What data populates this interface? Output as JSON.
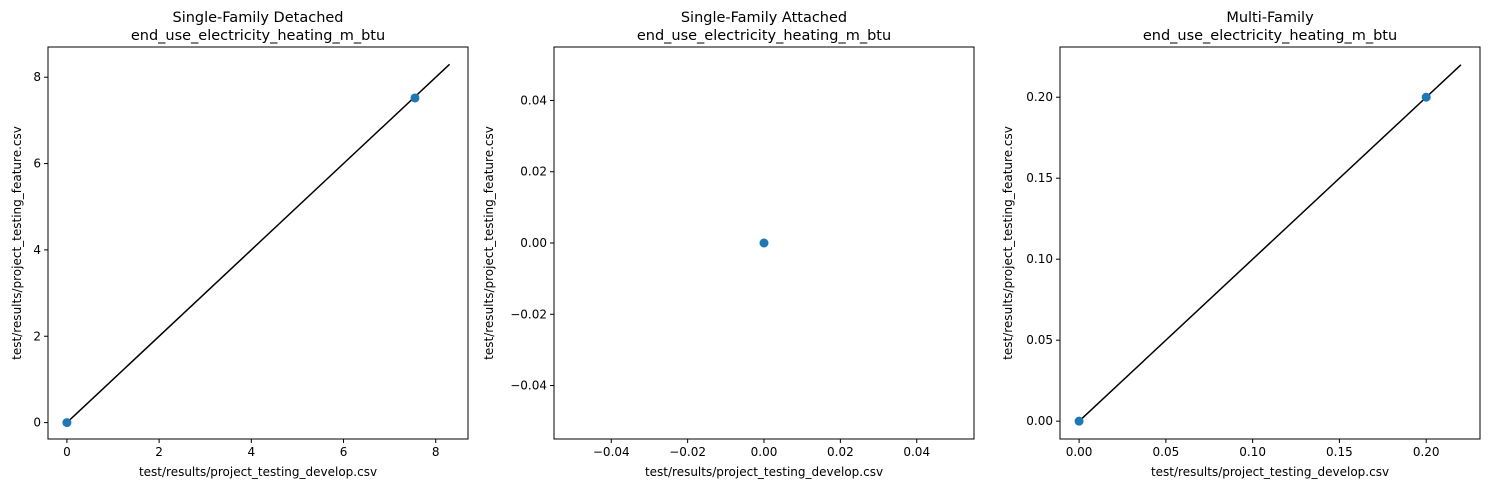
{
  "chart_data": [
    {
      "type": "scatter",
      "title": "Single-Family Detached\nend_use_electricity_heating_m_btu",
      "xlabel": "test/results/project_testing_develop.csv",
      "ylabel": "test/results/project_testing_feature.csv",
      "xlim": [
        -0.41,
        8.7
      ],
      "ylim": [
        -0.38,
        8.7
      ],
      "xticks": [
        0,
        2,
        4,
        6,
        8
      ],
      "xtick_labels": [
        "0",
        "2",
        "4",
        "6",
        "8"
      ],
      "yticks": [
        0,
        2,
        4,
        6,
        8
      ],
      "ytick_labels": [
        "0",
        "2",
        "4",
        "6",
        "8"
      ],
      "points": [
        {
          "x": 0,
          "y": 0
        },
        {
          "x": 7.55,
          "y": 7.52
        }
      ],
      "reference_line": {
        "from": [
          0,
          0
        ],
        "to": [
          8.3,
          8.3
        ]
      },
      "grid": false,
      "colors": {
        "points": "#1f77b4",
        "line": "#000000"
      }
    },
    {
      "type": "scatter",
      "title": "Single-Family Attached\nend_use_electricity_heating_m_btu",
      "xlabel": "test/results/project_testing_develop.csv",
      "ylabel": "test/results/project_testing_feature.csv",
      "xlim": [
        -0.055,
        0.055
      ],
      "ylim": [
        -0.055,
        0.055
      ],
      "xticks": [
        -0.04,
        -0.02,
        0,
        0.02,
        0.04
      ],
      "xtick_labels": [
        "−0.04",
        "−0.02",
        "0.00",
        "0.02",
        "0.04"
      ],
      "yticks": [
        -0.04,
        -0.02,
        0,
        0.02,
        0.04
      ],
      "ytick_labels": [
        "−0.04",
        "−0.02",
        "0.00",
        "0.02",
        "0.04"
      ],
      "points": [
        {
          "x": 0,
          "y": 0
        }
      ],
      "reference_line": null,
      "grid": false,
      "colors": {
        "points": "#1f77b4",
        "line": "#000000"
      }
    },
    {
      "type": "scatter",
      "title": "Multi-Family\nend_use_electricity_heating_m_btu",
      "xlabel": "test/results/project_testing_develop.csv",
      "ylabel": "test/results/project_testing_feature.csv",
      "xlim": [
        -0.011,
        0.231
      ],
      "ylim": [
        -0.011,
        0.231
      ],
      "xticks": [
        0,
        0.05,
        0.1,
        0.15,
        0.2
      ],
      "xtick_labels": [
        "0.00",
        "0.05",
        "0.10",
        "0.15",
        "0.20"
      ],
      "yticks": [
        0,
        0.05,
        0.1,
        0.15,
        0.2
      ],
      "ytick_labels": [
        "0.00",
        "0.05",
        "0.10",
        "0.15",
        "0.20"
      ],
      "points": [
        {
          "x": 0,
          "y": 0
        },
        {
          "x": 0.2,
          "y": 0.2
        }
      ],
      "reference_line": {
        "from": [
          0,
          0
        ],
        "to": [
          0.22,
          0.22
        ]
      },
      "grid": false,
      "colors": {
        "points": "#1f77b4",
        "line": "#000000"
      }
    }
  ]
}
